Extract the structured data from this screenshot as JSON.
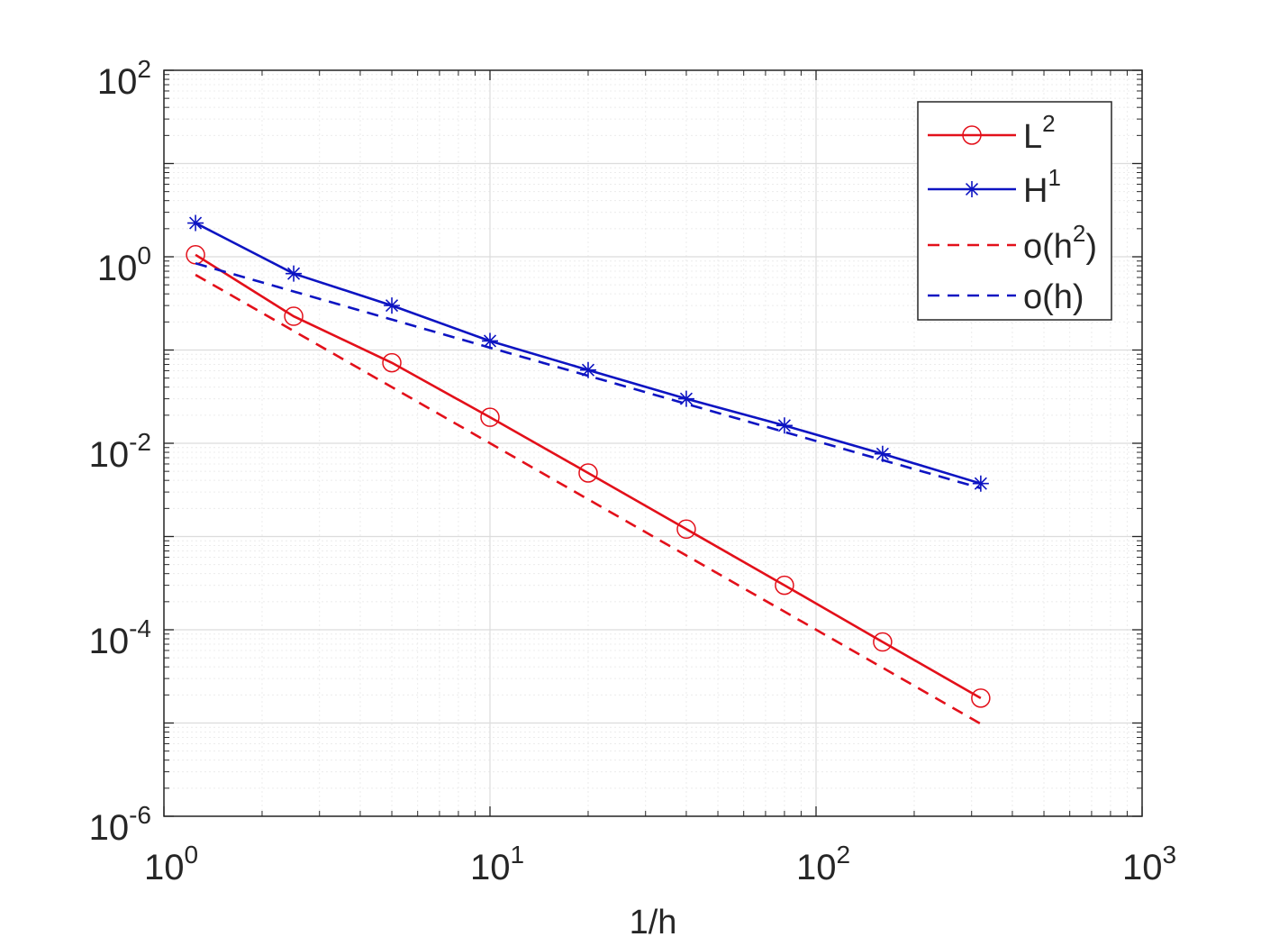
{
  "chart_data": {
    "type": "line",
    "title": "",
    "xlabel": "1/h",
    "ylabel": "",
    "xscale": "log",
    "yscale": "log",
    "xlim": [
      1,
      1000
    ],
    "ylim": [
      1e-06,
      100
    ],
    "grid": true,
    "legend_position": "top-right",
    "x_ticks": [
      {
        "value": 1,
        "base": "10",
        "exp": "0"
      },
      {
        "value": 10,
        "base": "10",
        "exp": "1"
      },
      {
        "value": 100,
        "base": "10",
        "exp": "2"
      },
      {
        "value": 1000,
        "base": "10",
        "exp": "3"
      }
    ],
    "y_ticks": [
      {
        "value": 1e-06,
        "base": "10",
        "exp": "-6"
      },
      {
        "value": 0.0001,
        "base": "10",
        "exp": "-4"
      },
      {
        "value": 0.01,
        "base": "10",
        "exp": "-2"
      },
      {
        "value": 1,
        "base": "10",
        "exp": "0"
      },
      {
        "value": 100,
        "base": "10",
        "exp": "2"
      }
    ],
    "series": [
      {
        "name_base": "L",
        "name_sup": "2",
        "color": "#e3101a",
        "style": "solid",
        "marker": "circle",
        "x": [
          1.25,
          2.5,
          5,
          10,
          20,
          40,
          80,
          160,
          320
        ],
        "y": [
          1.05,
          0.23,
          0.073,
          0.019,
          0.0048,
          0.0012,
          0.0003,
          7.4e-05,
          1.85e-05
        ]
      },
      {
        "name_base": "H",
        "name_sup": "1",
        "color": "#0d14c2",
        "style": "solid",
        "marker": "star",
        "x": [
          1.25,
          2.5,
          5,
          10,
          20,
          40,
          80,
          160,
          320
        ],
        "y": [
          2.3,
          0.66,
          0.3,
          0.125,
          0.061,
          0.03,
          0.0155,
          0.0077,
          0.0037
        ]
      },
      {
        "name_base": "o(h",
        "name_sup": "2",
        "name_tail": ")",
        "color": "#e3101a",
        "style": "dashed",
        "marker": "none",
        "x": [
          1.25,
          320
        ],
        "y": [
          0.64,
          9.8e-06
        ]
      },
      {
        "name_base": "o(h)",
        "name_sup": "",
        "name_tail": "",
        "color": "#0d14c2",
        "style": "dashed",
        "marker": "none",
        "x": [
          1.25,
          320
        ],
        "y": [
          0.85,
          0.0033
        ]
      }
    ]
  }
}
